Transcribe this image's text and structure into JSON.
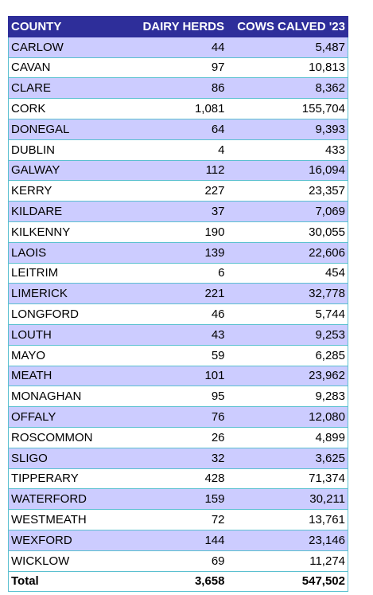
{
  "table": {
    "headers": [
      "COUNTY",
      "DAIRY HERDS",
      "COWS CALVED '23"
    ],
    "rows": [
      [
        "CARLOW",
        "44",
        "5,487"
      ],
      [
        "CAVAN",
        "97",
        "10,813"
      ],
      [
        "CLARE",
        "86",
        "8,362"
      ],
      [
        "CORK",
        "1,081",
        "155,704"
      ],
      [
        "DONEGAL",
        "64",
        "9,393"
      ],
      [
        "DUBLIN",
        "4",
        "433"
      ],
      [
        "GALWAY",
        "112",
        "16,094"
      ],
      [
        "KERRY",
        "227",
        "23,357"
      ],
      [
        "KILDARE",
        "37",
        "7,069"
      ],
      [
        "KILKENNY",
        "190",
        "30,055"
      ],
      [
        "LAOIS",
        "139",
        "22,606"
      ],
      [
        "LEITRIM",
        "6",
        "454"
      ],
      [
        "LIMERICK",
        "221",
        "32,778"
      ],
      [
        "LONGFORD",
        "46",
        "5,744"
      ],
      [
        "LOUTH",
        "43",
        "9,253"
      ],
      [
        "MAYO",
        "59",
        "6,285"
      ],
      [
        "MEATH",
        "101",
        "23,962"
      ],
      [
        "MONAGHAN",
        "95",
        "9,283"
      ],
      [
        "OFFALY",
        "76",
        "12,080"
      ],
      [
        "ROSCOMMON",
        "26",
        "4,899"
      ],
      [
        "SLIGO",
        "32",
        "3,625"
      ],
      [
        "TIPPERARY",
        "428",
        "71,374"
      ],
      [
        "WATERFORD",
        "159",
        "30,211"
      ],
      [
        "WESTMEATH",
        "72",
        "13,761"
      ],
      [
        "WEXFORD",
        "144",
        "23,146"
      ],
      [
        "WICKLOW",
        "69",
        "11,274"
      ]
    ],
    "total": [
      "Total",
      "3,658",
      "547,502"
    ]
  },
  "colors": {
    "header_bg": "#2e2e9a",
    "header_text": "#ffffff",
    "band_bg": "#ccccff",
    "plain_bg": "#ffffff",
    "border": "#5bc0d0"
  }
}
